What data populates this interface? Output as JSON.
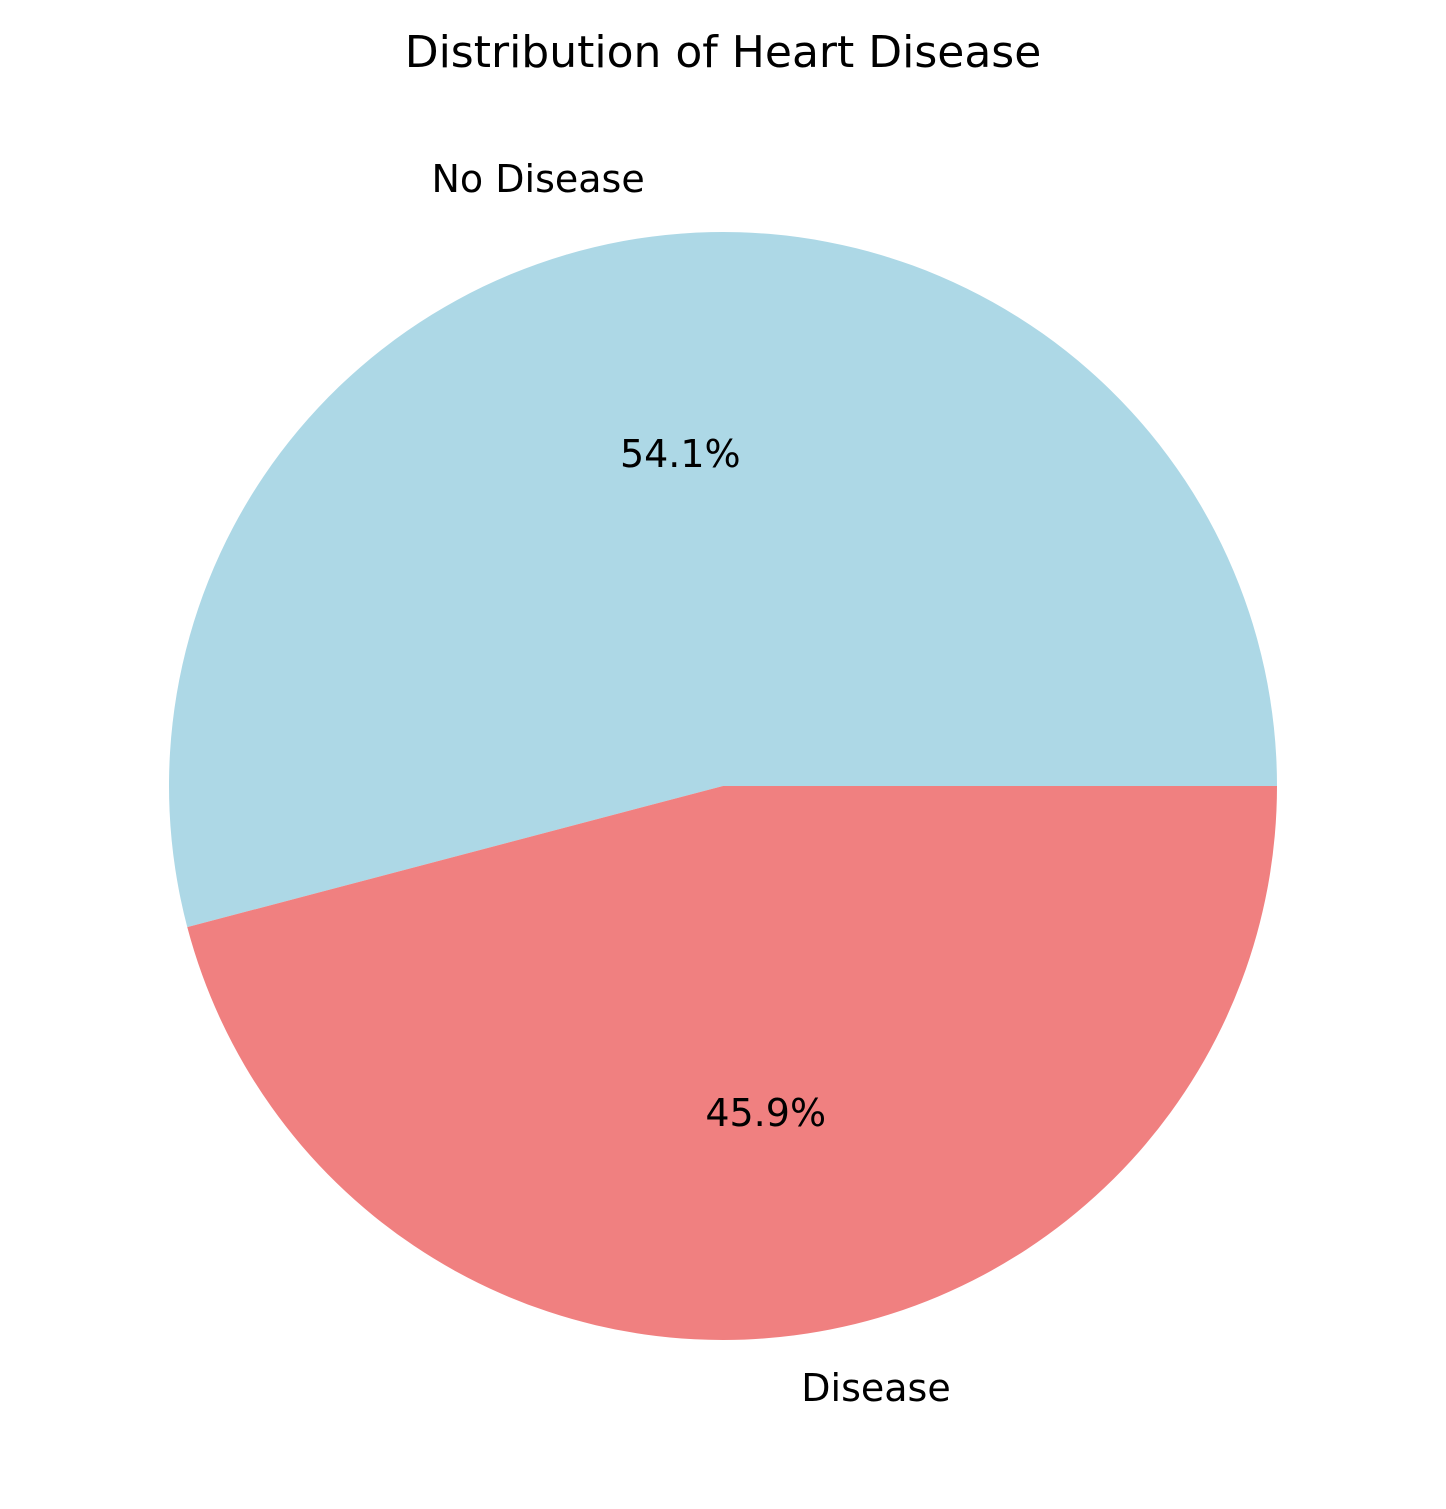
{
  "chart_data": {
    "type": "pie",
    "title": "Distribution of Heart Disease",
    "categories": [
      "No Disease",
      "Disease"
    ],
    "values": [
      54.1,
      45.9
    ],
    "percent_labels": [
      "54.1%",
      "45.9%"
    ],
    "colors": [
      "#add8e6",
      "#f08080"
    ],
    "start_angle_deg": 0,
    "direction": "counterclockwise"
  }
}
